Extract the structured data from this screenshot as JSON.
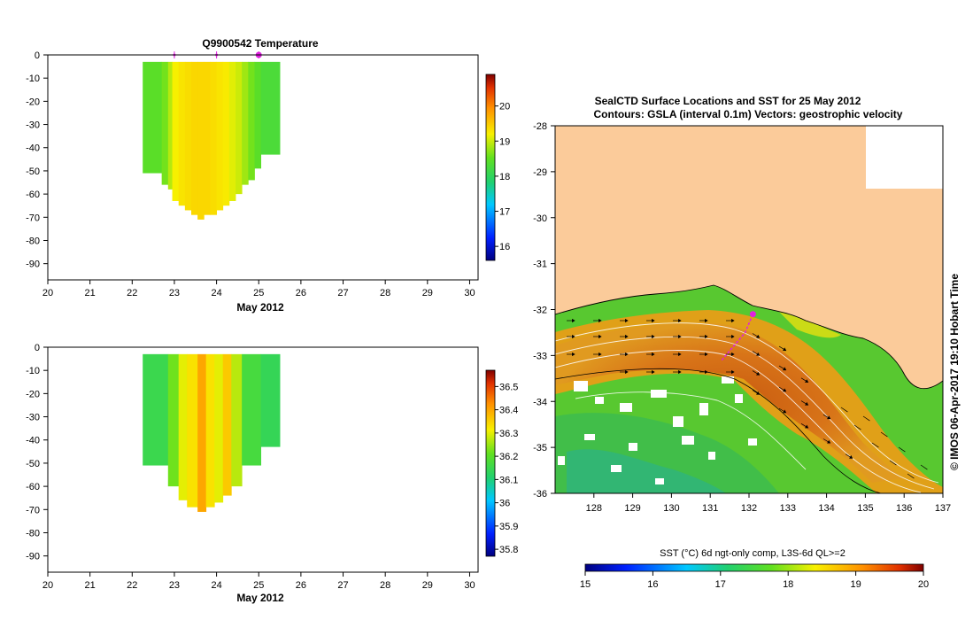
{
  "chart_data": [
    {
      "type": "heatmap",
      "title": "Q9900542  Temperature",
      "xlabel": "May 2012",
      "ylabel": "",
      "x_ticks": [
        "20",
        "21",
        "22",
        "23",
        "24",
        "25",
        "26",
        "27",
        "28",
        "29",
        "30"
      ],
      "y_ticks": [
        "0",
        "-10",
        "-20",
        "-30",
        "-40",
        "-50",
        "-60",
        "-70",
        "-80",
        "-90"
      ],
      "xlim": [
        20,
        30.2
      ],
      "ylim": [
        -97,
        0
      ],
      "colorbar_ticks": [
        "16",
        "17",
        "18",
        "19",
        "20"
      ],
      "colorbar_range": [
        15.6,
        20.9
      ],
      "profiles": [
        {
          "x0": 22.25,
          "x1": 22.7,
          "bottom": -51,
          "value": 18.45
        },
        {
          "x0": 22.7,
          "x1": 22.85,
          "bottom": -56,
          "value": 18.6
        },
        {
          "x0": 22.85,
          "x1": 22.95,
          "bottom": -58,
          "value": 18.9
        },
        {
          "x0": 22.95,
          "x1": 23.1,
          "bottom": -63,
          "value": 19.2
        },
        {
          "x0": 23.1,
          "x1": 23.25,
          "bottom": -65,
          "value": 19.3
        },
        {
          "x0": 23.25,
          "x1": 23.4,
          "bottom": -67,
          "value": 19.35
        },
        {
          "x0": 23.4,
          "x1": 23.55,
          "bottom": -69,
          "value": 19.4
        },
        {
          "x0": 23.55,
          "x1": 23.7,
          "bottom": -71,
          "value": 19.4
        },
        {
          "x0": 23.7,
          "x1": 23.85,
          "bottom": -69,
          "value": 19.4
        },
        {
          "x0": 23.85,
          "x1": 24.0,
          "bottom": -69,
          "value": 19.35
        },
        {
          "x0": 24.0,
          "x1": 24.15,
          "bottom": -67,
          "value": 19.3
        },
        {
          "x0": 24.15,
          "x1": 24.3,
          "bottom": -65,
          "value": 19.25
        },
        {
          "x0": 24.3,
          "x1": 24.45,
          "bottom": -63,
          "value": 19.1
        },
        {
          "x0": 24.45,
          "x1": 24.6,
          "bottom": -60,
          "value": 19.0
        },
        {
          "x0": 24.6,
          "x1": 24.75,
          "bottom": -56,
          "value": 18.8
        },
        {
          "x0": 24.75,
          "x1": 24.9,
          "bottom": -54,
          "value": 18.6
        },
        {
          "x0": 24.9,
          "x1": 25.05,
          "bottom": -49,
          "value": 18.45
        },
        {
          "x0": 25.05,
          "x1": 25.5,
          "bottom": -43,
          "value": 18.3
        }
      ],
      "profile_markers": [
        23.0,
        24.0,
        25.0
      ]
    },
    {
      "type": "heatmap",
      "title": "",
      "xlabel": "May 2012",
      "ylabel": "",
      "x_ticks": [
        "20",
        "21",
        "22",
        "23",
        "24",
        "25",
        "26",
        "27",
        "28",
        "29",
        "30"
      ],
      "y_ticks": [
        "0",
        "-10",
        "-20",
        "-30",
        "-40",
        "-50",
        "-60",
        "-70",
        "-80",
        "-90"
      ],
      "xlim": [
        20,
        30.2
      ],
      "ylim": [
        -97,
        0
      ],
      "colorbar_ticks": [
        "35.8",
        "35.9",
        "36",
        "36.1",
        "36.2",
        "36.3",
        "36.4",
        "36.5"
      ],
      "colorbar_range": [
        35.77,
        36.57
      ],
      "profiles": [
        {
          "x0": 22.25,
          "x1": 22.85,
          "bottom": -51,
          "value": 36.15
        },
        {
          "x0": 22.85,
          "x1": 23.1,
          "bottom": -60,
          "value": 36.22
        },
        {
          "x0": 23.1,
          "x1": 23.3,
          "bottom": -66,
          "value": 36.3
        },
        {
          "x0": 23.3,
          "x1": 23.55,
          "bottom": -69,
          "value": 36.33
        },
        {
          "x0": 23.55,
          "x1": 23.75,
          "bottom": -71,
          "value": 36.4
        },
        {
          "x0": 23.75,
          "x1": 23.95,
          "bottom": -69,
          "value": 36.33
        },
        {
          "x0": 23.95,
          "x1": 24.15,
          "bottom": -67,
          "value": 36.3
        },
        {
          "x0": 24.15,
          "x1": 24.35,
          "bottom": -64,
          "value": 36.36
        },
        {
          "x0": 24.35,
          "x1": 24.6,
          "bottom": -60,
          "value": 36.27
        },
        {
          "x0": 24.6,
          "x1": 25.05,
          "bottom": -51,
          "value": 36.17
        },
        {
          "x0": 25.05,
          "x1": 25.5,
          "bottom": -43,
          "value": 36.14
        }
      ]
    },
    {
      "type": "heatmap",
      "title": "SealCTD Surface Locations and SST for 25 May 2012",
      "subtitle": "Contours: GSLA (interval 0.1m) Vectors: geostrophic velocity",
      "xlabel": "",
      "ylabel": "",
      "x_ticks": [
        "128",
        "129",
        "130",
        "131",
        "132",
        "133",
        "134",
        "135",
        "136",
        "137"
      ],
      "y_ticks": [
        "-28",
        "-29",
        "-30",
        "-31",
        "-32",
        "-33",
        "-34",
        "-35",
        "-36"
      ],
      "xlim": [
        127.0,
        137.0
      ],
      "ylim": [
        -36.0,
        -28.0
      ],
      "colorbar_label": "SST (°C) 6d ngt-only comp, L3S-6d QL>=2",
      "colorbar_ticks": [
        "15",
        "16",
        "17",
        "18",
        "19",
        "20"
      ],
      "colorbar_range": [
        15.0,
        20.0
      ],
      "seal_track": [
        [
          131.3,
          -33.1
        ],
        [
          131.6,
          -32.8
        ],
        [
          131.9,
          -32.5
        ],
        [
          132.1,
          -32.1
        ]
      ],
      "side_label": "© IMOS 06-Apr-2017 19:10 Hobart Time"
    }
  ],
  "colors": {
    "land": "#fbcb9a",
    "marker": "#e020e0",
    "frame": "#000000"
  }
}
